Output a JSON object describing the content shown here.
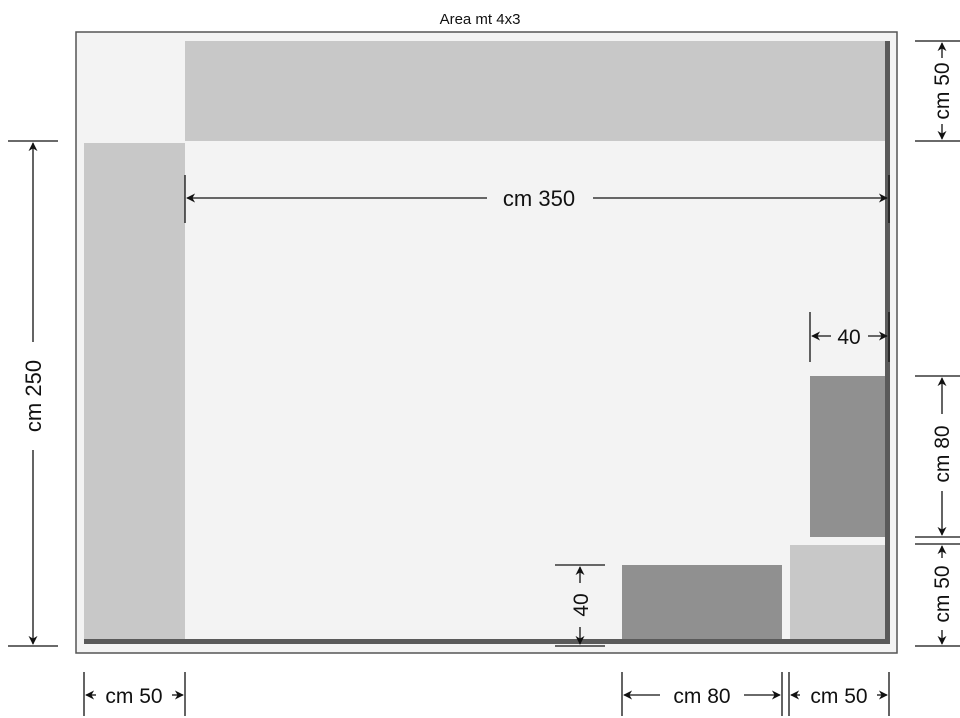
{
  "title": "Area mt 4x3",
  "colors": {
    "background_area": "#f3f3f3",
    "frame": "#555555",
    "light_block": "#c8c8c8",
    "dark_block": "#909090",
    "wall": "#5a5a5a"
  },
  "dimensions": {
    "width_main": "cm 350",
    "height_main": "cm 250",
    "top_right": "cm 50",
    "right_middle": "cm 80",
    "right_bottom": "cm 50",
    "bottom_left": "cm 50",
    "bottom_middle": "cm 80",
    "bottom_right": "cm 50",
    "gap_right": "40",
    "gap_bottom": "40"
  }
}
